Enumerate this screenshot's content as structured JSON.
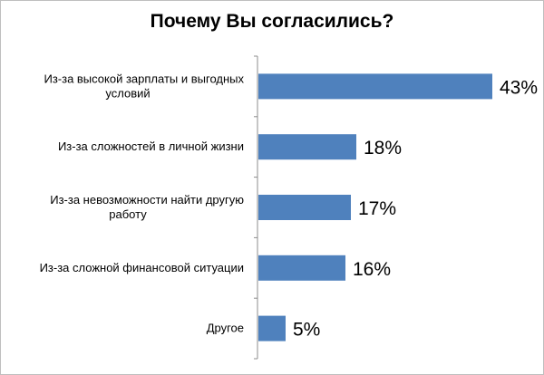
{
  "chart_data": {
    "type": "bar",
    "orientation": "horizontal",
    "title": "Почему Вы согласились?",
    "categories": [
      [
        "Из-за высокой зарплаты и выгодных",
        "условий"
      ],
      [
        "Из-за сложностей в личной жизни"
      ],
      [
        "Из-за невозможности найти другую",
        "работу"
      ],
      [
        "Из-за сложной финансовой ситуации"
      ],
      [
        "Другое"
      ]
    ],
    "values": [
      43,
      18,
      17,
      16,
      5
    ],
    "value_labels": [
      "43%",
      "18%",
      "17%",
      "16%",
      "5%"
    ],
    "xlim": [
      0,
      43
    ],
    "bar_color": "#4f81bd",
    "axis_color": "#8c8c8c",
    "grid": false,
    "legend": "none"
  }
}
